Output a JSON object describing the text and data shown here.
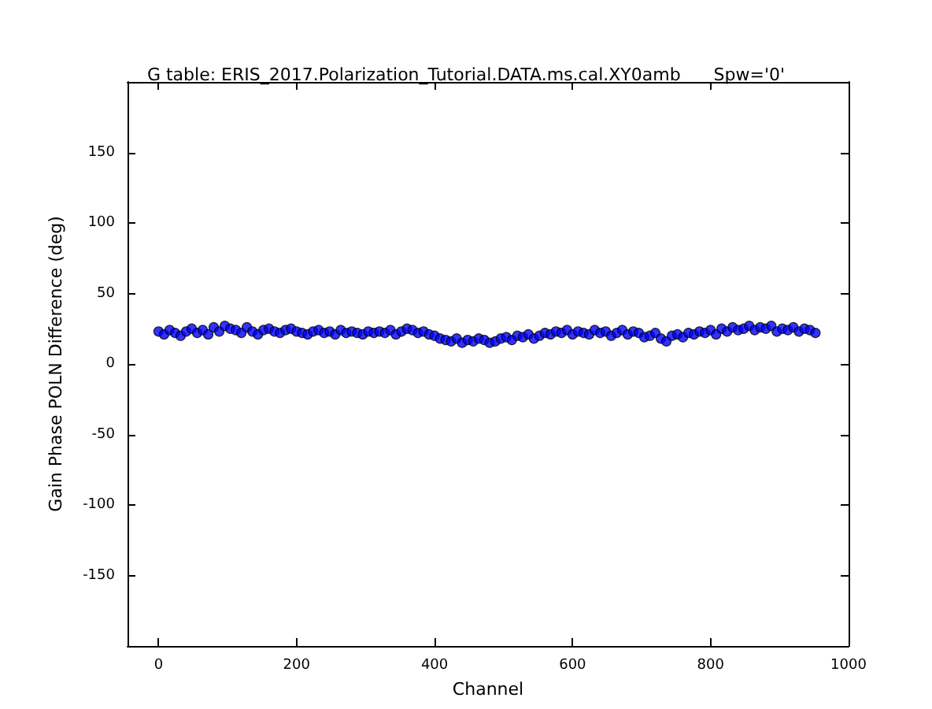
{
  "chart_data": {
    "type": "scatter",
    "title": "G table: ERIS_2017.Polarization_Tutorial.DATA.ms.cal.XY0amb      Spw='0'",
    "xlabel": "Channel",
    "ylabel": "Gain Phase POLN Difference (deg)",
    "x": [
      0,
      8,
      16,
      24,
      32,
      40,
      48,
      56,
      64,
      72,
      80,
      88,
      96,
      104,
      112,
      120,
      128,
      136,
      144,
      152,
      160,
      168,
      176,
      184,
      192,
      200,
      208,
      216,
      224,
      232,
      240,
      248,
      256,
      264,
      272,
      280,
      288,
      296,
      304,
      312,
      320,
      328,
      336,
      344,
      352,
      360,
      368,
      376,
      384,
      392,
      400,
      408,
      416,
      424,
      432,
      440,
      448,
      456,
      464,
      472,
      480,
      488,
      496,
      504,
      512,
      520,
      528,
      536,
      544,
      552,
      560,
      568,
      576,
      584,
      592,
      600,
      608,
      616,
      624,
      632,
      640,
      648,
      656,
      664,
      672,
      680,
      688,
      696,
      704,
      712,
      720,
      728,
      736,
      744,
      752,
      760,
      768,
      776,
      784,
      792,
      800,
      808,
      816,
      824,
      832,
      840,
      848,
      856,
      864,
      872,
      880,
      888,
      896,
      904,
      912,
      920,
      928,
      936,
      944,
      952
    ],
    "series": [
      {
        "color": "#0000ff",
        "values": [
          23,
          21,
          24,
          22,
          20,
          23,
          25,
          22,
          24,
          21,
          26,
          23,
          27,
          25,
          24,
          22,
          26,
          23,
          21,
          24,
          25,
          23,
          22,
          24,
          25,
          23,
          22,
          21,
          23,
          24,
          22,
          23,
          21,
          24,
          22,
          23,
          22,
          21,
          23,
          22,
          23,
          22,
          24,
          21,
          23,
          25,
          24,
          22,
          23,
          21,
          20,
          18,
          17,
          16,
          18,
          15,
          17,
          16,
          18,
          17,
          15,
          16,
          18,
          19,
          17,
          20,
          19,
          21,
          18,
          20,
          22,
          21,
          23,
          22,
          24,
          21,
          23,
          22,
          21,
          24,
          22,
          23,
          20,
          22,
          24,
          21,
          23,
          22,
          19,
          20,
          22,
          18,
          16,
          20,
          21,
          19,
          22,
          21,
          23,
          22,
          24,
          21,
          25,
          23,
          26,
          24,
          25,
          27,
          24,
          26,
          25,
          27,
          23,
          25,
          24,
          26,
          23,
          25,
          24,
          22
        ]
      }
    ],
    "xlim": [
      -45,
      1000
    ],
    "xticks": [
      0,
      200,
      400,
      600,
      800,
      1000
    ],
    "ylim": [
      -200,
      200
    ],
    "yticks": [
      -150,
      -100,
      -50,
      0,
      50,
      100,
      150
    ],
    "marker": "circle",
    "grid": false
  }
}
